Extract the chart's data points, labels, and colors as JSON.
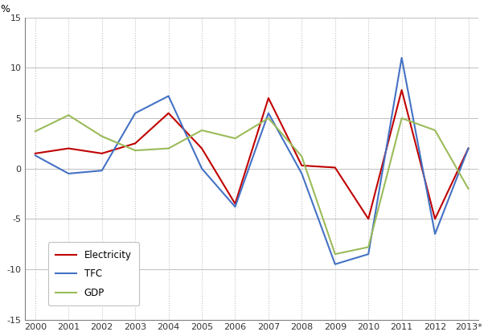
{
  "years": [
    2000,
    2001,
    2002,
    2003,
    2004,
    2005,
    2006,
    2007,
    2008,
    2009,
    2010,
    2011,
    2012,
    2013
  ],
  "year_labels": [
    "2000",
    "2001",
    "2002",
    "2003",
    "2004",
    "2005",
    "2006",
    "2007",
    "2008",
    "2009",
    "2010",
    "2011",
    "2012",
    "2013*"
  ],
  "electricity": [
    1.5,
    2.0,
    1.5,
    2.5,
    5.5,
    2.0,
    -3.5,
    7.0,
    0.3,
    0.1,
    -5.0,
    7.8,
    -5.0,
    2.0
  ],
  "tfc": [
    1.3,
    -0.5,
    -0.2,
    5.5,
    7.2,
    0.0,
    -3.8,
    5.5,
    -0.5,
    -9.5,
    -8.5,
    11.0,
    -6.5,
    2.0
  ],
  "gdp": [
    3.7,
    5.3,
    3.2,
    1.8,
    2.0,
    3.8,
    3.0,
    5.0,
    1.2,
    -8.5,
    -7.8,
    5.0,
    3.8,
    -2.0
  ],
  "electricity_color": "#C00000",
  "tfc_color": "#4472C4",
  "gdp_color": "#9BBB59",
  "ylim": [
    -15,
    15
  ],
  "yticks": [
    -15,
    -10,
    -5,
    0,
    5,
    10,
    15
  ],
  "ylabel": "%",
  "grid_color": "#C0C0C0",
  "spine_color": "#808080",
  "background_color": "#FFFFFF",
  "legend_labels": [
    "Electricity",
    "TFC",
    "GDP"
  ],
  "line_width": 1.5,
  "figsize": [
    6.07,
    4.18
  ],
  "dpi": 100
}
